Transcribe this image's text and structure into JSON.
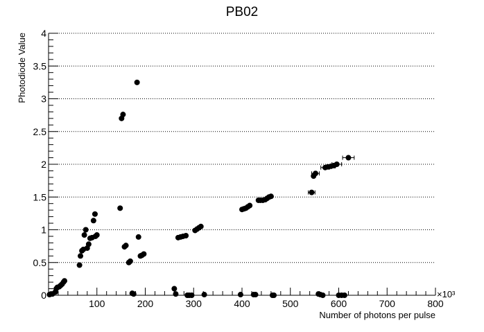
{
  "chart_data": {
    "type": "scatter",
    "title": "PB02",
    "xlabel": "Number of photons per pulse",
    "ylabel": "Photodiode Value",
    "x_multiplier_label": "×10³",
    "xlim": [
      0,
      800
    ],
    "ylim": [
      0,
      4
    ],
    "x_ticks": [
      100,
      200,
      300,
      400,
      500,
      600,
      700,
      800
    ],
    "x_tick_labels": [
      "100",
      "200",
      "300",
      "400",
      "500",
      "600",
      "700",
      "800"
    ],
    "y_ticks": [
      0,
      0.5,
      1,
      1.5,
      2,
      2.5,
      3,
      3.5,
      4
    ],
    "y_tick_labels": [
      "0",
      "0.5",
      "1",
      "1.5",
      "2",
      "2.5",
      "3",
      "3.5",
      "4"
    ],
    "grid": "horizontal dotted",
    "marker_color": "#000000",
    "series": [
      {
        "points": [
          [
            2,
            0.01
          ],
          [
            5,
            0.02
          ],
          [
            8,
            0.02
          ],
          [
            14,
            0.05
          ],
          [
            16,
            0.1
          ],
          [
            18,
            0.12
          ],
          [
            22,
            0.13
          ],
          [
            25,
            0.15
          ],
          [
            28,
            0.17
          ],
          [
            31,
            0.2
          ],
          [
            33,
            0.22
          ],
          [
            64,
            0.46
          ],
          [
            66,
            0.6
          ],
          [
            69,
            0.68
          ],
          [
            72,
            0.7
          ],
          [
            74,
            0.92
          ],
          [
            77,
            1.0
          ],
          [
            80,
            0.72
          ],
          [
            83,
            0.78
          ],
          [
            86,
            0.87
          ],
          [
            90,
            0.88
          ],
          [
            93,
            1.14
          ],
          [
            96,
            1.24
          ],
          [
            97,
            0.9
          ],
          [
            100,
            0.92
          ],
          [
            148,
            1.33
          ],
          [
            151,
            2.7
          ],
          [
            154,
            2.76
          ],
          [
            157,
            0.74
          ],
          [
            160,
            0.76
          ],
          [
            166,
            0.5
          ],
          [
            169,
            0.52
          ],
          [
            173,
            0.03
          ],
          [
            176,
            0.02
          ],
          [
            183,
            3.25
          ],
          [
            186,
            0.89
          ],
          [
            190,
            0.6
          ],
          [
            193,
            0.61
          ],
          [
            197,
            0.63
          ],
          [
            260,
            0.1
          ],
          [
            263,
            0.02
          ],
          [
            268,
            0.88
          ],
          [
            273,
            0.89
          ],
          [
            278,
            0.9
          ],
          [
            284,
            0.91
          ],
          [
            287,
            0.0
          ],
          [
            291,
            0.0
          ],
          [
            296,
            0.0
          ],
          [
            303,
            0.99
          ],
          [
            307,
            1.01
          ],
          [
            311,
            1.03
          ],
          [
            315,
            1.05
          ],
          [
            322,
            0.01
          ],
          [
            397,
            0.01
          ],
          [
            400,
            1.31
          ],
          [
            404,
            1.32
          ],
          [
            408,
            1.33
          ],
          [
            412,
            1.35
          ],
          [
            416,
            1.37
          ],
          [
            424,
            0.01
          ],
          [
            428,
            0.01
          ],
          [
            434,
            1.45
          ],
          [
            438,
            1.45
          ],
          [
            443,
            1.45
          ],
          [
            448,
            1.46
          ],
          [
            452,
            1.48
          ],
          [
            456,
            1.5
          ],
          [
            460,
            1.51
          ],
          [
            463,
            0.0
          ],
          [
            466,
            0.0
          ],
          [
            544,
            1.57
          ],
          [
            548,
            1.82
          ],
          [
            552,
            1.86
          ],
          [
            558,
            0.02
          ],
          [
            562,
            0.01
          ],
          [
            567,
            0.0
          ],
          [
            572,
            1.95
          ],
          [
            578,
            1.96
          ],
          [
            584,
            1.97
          ],
          [
            590,
            1.98
          ],
          [
            596,
            2.0
          ],
          [
            600,
            0.0
          ],
          [
            606,
            0.0
          ],
          [
            612,
            0.0
          ],
          [
            620,
            2.1
          ]
        ],
        "x_errors": [
          [
            544,
            1.57,
            7
          ],
          [
            552,
            1.86,
            8
          ],
          [
            572,
            1.95,
            9
          ],
          [
            584,
            1.97,
            9
          ],
          [
            596,
            2.0,
            10
          ],
          [
            620,
            2.1,
            12
          ]
        ]
      }
    ]
  }
}
